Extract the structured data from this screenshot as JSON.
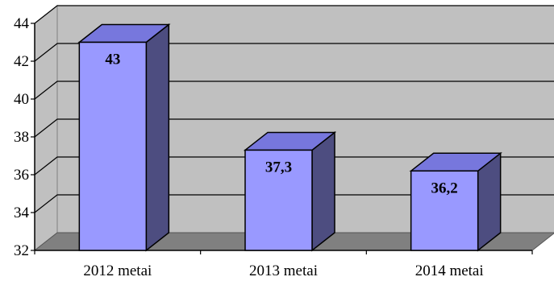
{
  "chart_data": {
    "type": "bar",
    "title": "",
    "xlabel": "",
    "ylabel": "",
    "categories": [
      "2012 metai",
      "2013 metai",
      "2014 metai"
    ],
    "values": [
      43,
      37.3,
      36.2
    ],
    "data_labels": [
      "43",
      "37,3",
      "36,2"
    ],
    "ylim": [
      32,
      44
    ],
    "yticks": [
      32,
      34,
      36,
      38,
      40,
      42,
      44
    ],
    "grid": true,
    "legend": "none",
    "style": "3d-column",
    "colors": {
      "bar_front": "#9999ff",
      "bar_side": "#4d4d80",
      "bar_top": "#7777dd",
      "back_wall": "#c0c0c0",
      "floor": "#808080"
    }
  }
}
